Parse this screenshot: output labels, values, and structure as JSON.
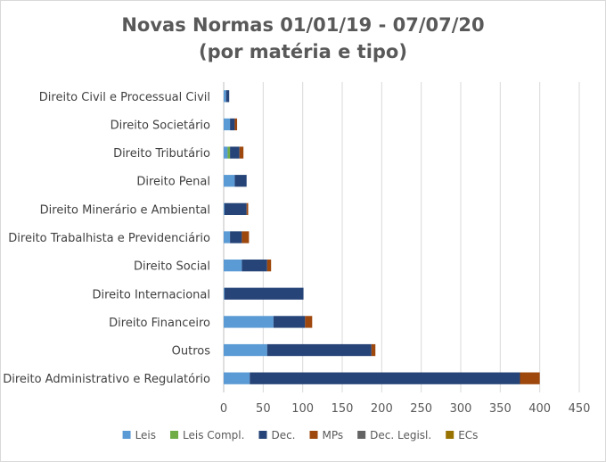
{
  "chart_data": {
    "type": "bar",
    "orientation": "horizontal",
    "stacked": true,
    "title": [
      "Novas Normas 01/01/19 - 07/07/20",
      "(por matéria e tipo)"
    ],
    "categories": [
      "Direito Civil e Processual Civil",
      "Direito Societário",
      "Direito Tributário",
      "Direito Penal",
      "Direito Minerário e  Ambiental",
      "Direito Trabalhista e Previdenciário",
      "Direito Social",
      "Direito Internacional",
      "Direito Financeiro",
      "Outros",
      "Direito Administrativo e Regulatório"
    ],
    "series": [
      {
        "name": "Leis",
        "color": "#5b9bd5",
        "values": [
          3,
          8,
          5,
          14,
          1,
          8,
          23,
          1,
          63,
          55,
          33
        ]
      },
      {
        "name": "Leis Compl.",
        "color": "#70ad47",
        "values": [
          0,
          0,
          3,
          0,
          0,
          0,
          0,
          0,
          0,
          0,
          0
        ]
      },
      {
        "name": "Dec.",
        "color": "#264478",
        "values": [
          4,
          6,
          12,
          15,
          28,
          15,
          32,
          100,
          40,
          132,
          342
        ]
      },
      {
        "name": "MPs",
        "color": "#9e480e",
        "values": [
          0,
          3,
          5,
          0,
          2,
          9,
          5,
          0,
          9,
          5,
          25
        ]
      },
      {
        "name": "Dec. Legisl.",
        "color": "#636363",
        "values": [
          0,
          0,
          0,
          0,
          0,
          0,
          0,
          0,
          0,
          0,
          0
        ]
      },
      {
        "name": "ECs",
        "color": "#997300",
        "values": [
          0,
          0,
          0,
          0,
          0,
          0,
          0,
          0,
          0,
          0,
          0
        ]
      }
    ],
    "xlim": [
      0,
      450
    ],
    "xticks": [
      "0",
      "50",
      "100",
      "150",
      "200",
      "250",
      "300",
      "350",
      "400",
      "450"
    ],
    "grid": true,
    "legend": "bottom"
  }
}
